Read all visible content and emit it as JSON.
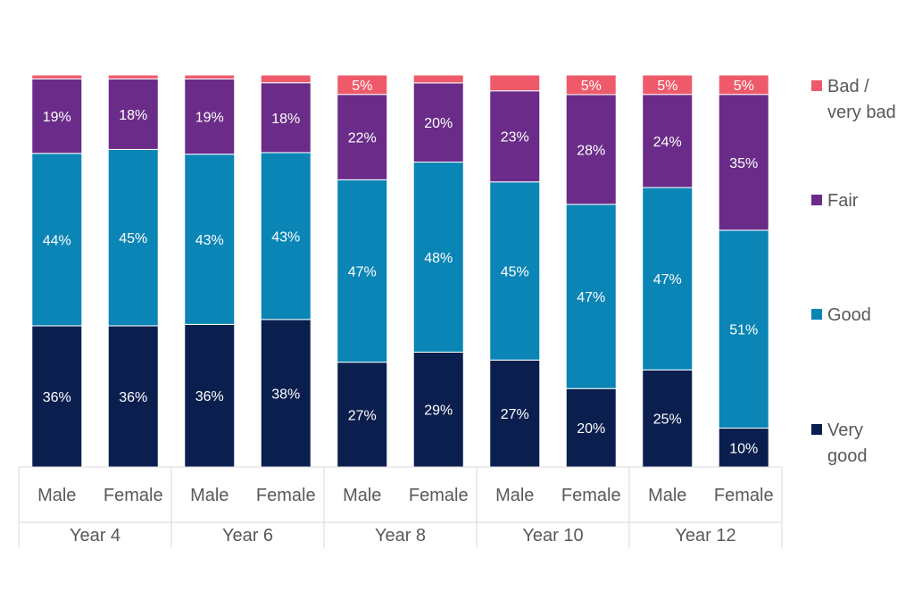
{
  "chart_data": {
    "type": "bar",
    "stacked": true,
    "ylim": [
      0,
      100
    ],
    "grid": false,
    "legend_position": "right",
    "groups": [
      {
        "label": "Year 4",
        "categories": [
          "Male",
          "Female"
        ]
      },
      {
        "label": "Year 6",
        "categories": [
          "Male",
          "Female"
        ]
      },
      {
        "label": "Year 8",
        "categories": [
          "Male",
          "Female"
        ]
      },
      {
        "label": "Year 10",
        "categories": [
          "Male",
          "Female"
        ]
      },
      {
        "label": "Year 12",
        "categories": [
          "Male",
          "Female"
        ]
      }
    ],
    "categories": [
      "Male",
      "Female",
      "Male",
      "Female",
      "Male",
      "Female",
      "Male",
      "Female",
      "Male",
      "Female"
    ],
    "series": [
      {
        "name": "Very good",
        "color": "#0b1f4f",
        "label_color": "#ffffff",
        "values": [
          36,
          36,
          36,
          38,
          27,
          29,
          27,
          20,
          25,
          10
        ],
        "labels": [
          "36%",
          "36%",
          "36%",
          "38%",
          "27%",
          "29%",
          "27%",
          "20%",
          "25%",
          "10%"
        ]
      },
      {
        "name": "Good",
        "color": "#0a85b5",
        "label_color": "#ffffff",
        "values": [
          44,
          45,
          43,
          43,
          47,
          48,
          45,
          47,
          47,
          51
        ],
        "labels": [
          "44%",
          "45%",
          "43%",
          "43%",
          "47%",
          "48%",
          "45%",
          "47%",
          "47%",
          "51%"
        ]
      },
      {
        "name": "Fair",
        "color": "#6a2c88",
        "label_color": "#ffffff",
        "values": [
          19,
          18,
          19,
          18,
          22,
          20,
          23,
          28,
          24,
          35
        ],
        "labels": [
          "19%",
          "18%",
          "19%",
          "18%",
          "22%",
          "20%",
          "23%",
          "28%",
          "24%",
          "35%"
        ]
      },
      {
        "name": "Bad / very bad",
        "color": "#ef5a6a",
        "label_color": "#ffffff",
        "values": [
          1,
          1,
          1,
          2,
          5,
          2,
          4,
          5,
          5,
          5
        ],
        "labels": [
          "",
          "",
          "",
          "",
          "5%",
          "",
          "",
          "5%",
          "5%",
          "5%"
        ]
      }
    ],
    "legend": [
      {
        "lines": [
          "Bad /",
          "very bad"
        ],
        "color": "#ef5a6a"
      },
      {
        "lines": [
          "Fair"
        ],
        "color": "#6a2c88"
      },
      {
        "lines": [
          "Good"
        ],
        "color": "#0a85b5"
      },
      {
        "lines": [
          "Very",
          "good"
        ],
        "color": "#0b1f4f"
      }
    ]
  }
}
